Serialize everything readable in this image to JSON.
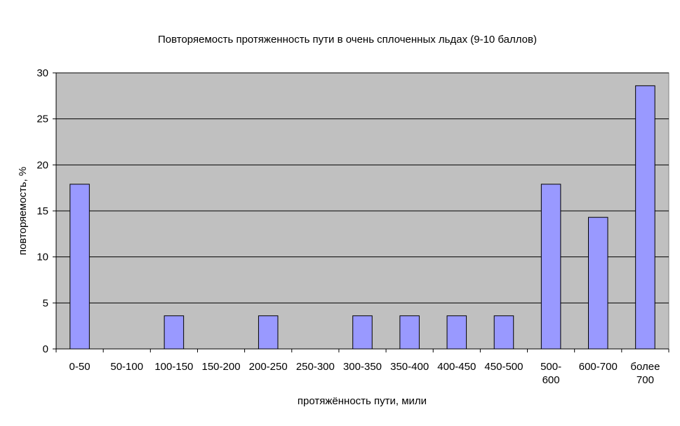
{
  "chart_data": {
    "type": "bar",
    "title": "Повторяемость протяженность пути в очень сплоченных льдах (9-10 баллов)",
    "xlabel": "протяжённость пути, мили",
    "ylabel": "повторяемость, %",
    "ylim": [
      0,
      30
    ],
    "yticks": [
      0,
      5,
      10,
      15,
      20,
      25,
      30
    ],
    "grid": true,
    "legend": "none",
    "categories": [
      [
        "0-50"
      ],
      [
        "50-100"
      ],
      [
        "100-150"
      ],
      [
        "150-200"
      ],
      [
        "200-250"
      ],
      [
        "250-300"
      ],
      [
        "300-350"
      ],
      [
        "350-400"
      ],
      [
        "400-450"
      ],
      [
        "450-500"
      ],
      [
        "500-",
        "600"
      ],
      [
        "600-700"
      ],
      [
        "более",
        "700"
      ]
    ],
    "values": [
      17.9,
      0,
      3.6,
      0,
      3.6,
      0,
      3.6,
      3.6,
      3.6,
      3.6,
      17.9,
      14.3,
      28.6
    ],
    "colors": {
      "bar_fill": "#9999ff",
      "plot_background": "#c0c0c0",
      "gridline": "#000000"
    }
  }
}
